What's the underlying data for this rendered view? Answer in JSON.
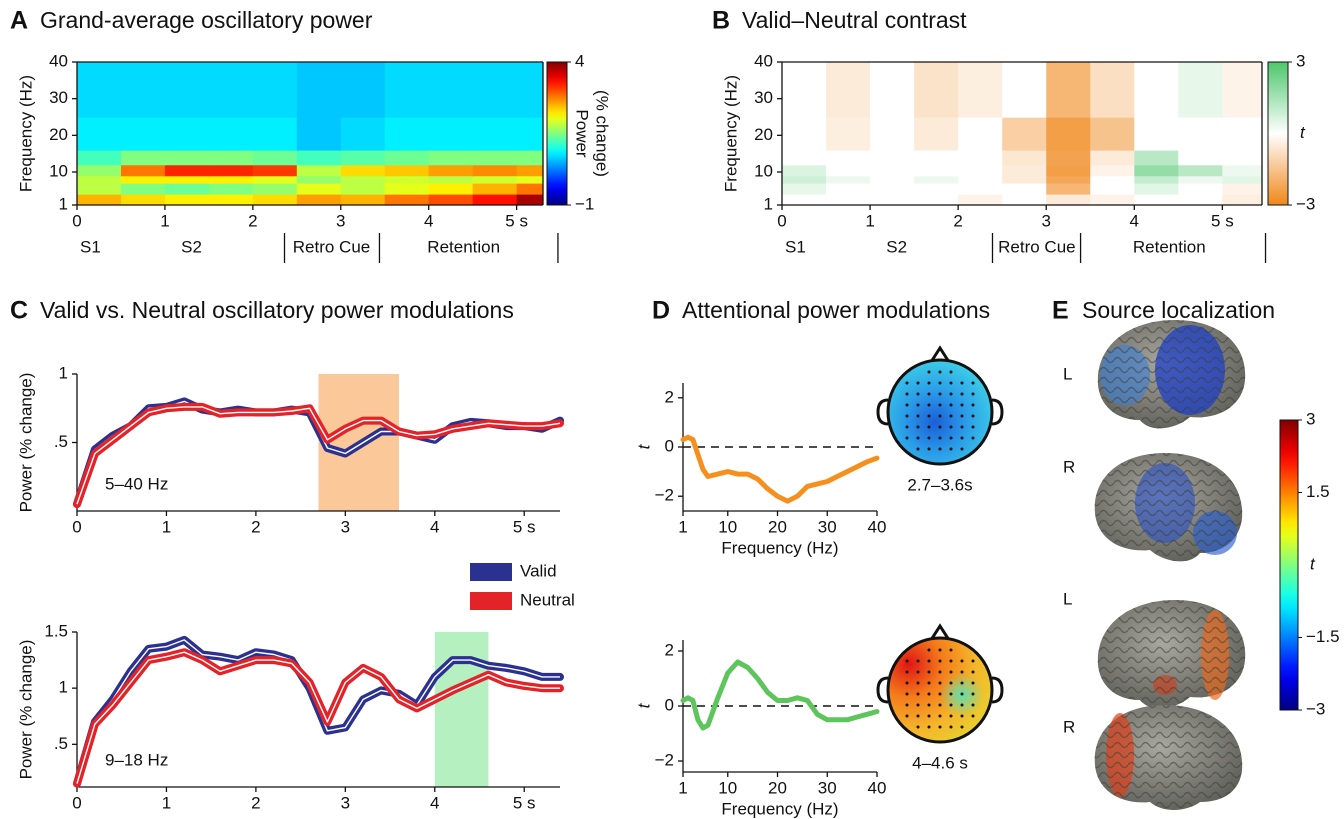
{
  "chart_data": [
    {
      "type": "heatmap",
      "panel": "A",
      "title": "Grand-average oscillatory power",
      "ylabel": "Frequency (Hz)",
      "xlim": [
        0,
        5.3
      ],
      "ylim": [
        1,
        40
      ],
      "xticks": [
        0,
        1,
        2,
        3,
        4,
        {
          "value": 5,
          "label": "5 s"
        }
      ],
      "yticks": [
        1,
        10,
        20,
        30,
        40
      ],
      "x_edges": [
        0,
        0.5,
        1,
        1.5,
        2,
        2.5,
        3,
        3.5,
        4,
        4.5,
        5,
        5.3
      ],
      "y_edges": [
        1,
        4,
        7,
        9,
        12,
        16,
        25,
        40
      ],
      "z": [
        [
          2.5,
          2.3,
          2.2,
          2.2,
          2.3,
          2.6,
          2.5,
          2.8,
          3.0,
          3.3,
          3.8
        ],
        [
          1.8,
          1.5,
          1.4,
          1.5,
          1.6,
          2.0,
          1.8,
          2.0,
          2.2,
          2.5,
          2.8
        ],
        [
          1.8,
          2.2,
          2.2,
          2.2,
          2.0,
          1.6,
          1.8,
          1.9,
          1.8,
          1.9,
          2.0
        ],
        [
          1.6,
          2.8,
          3.2,
          3.2,
          3.1,
          1.8,
          2.3,
          2.4,
          2.6,
          2.7,
          2.6
        ],
        [
          1.2,
          1.5,
          1.5,
          1.5,
          1.4,
          1.2,
          1.3,
          1.4,
          1.5,
          1.5,
          1.5
        ],
        [
          0.8,
          0.8,
          0.8,
          0.8,
          0.8,
          0.6,
          0.7,
          0.8,
          0.8,
          0.8,
          0.8
        ],
        [
          0.7,
          0.7,
          0.7,
          0.7,
          0.7,
          0.6,
          0.6,
          0.7,
          0.7,
          0.7,
          0.7
        ]
      ],
      "colormap": "jet",
      "clim": [
        -1,
        4
      ],
      "cticks": [
        4,
        {
          "value": -1,
          "label": "−1"
        }
      ],
      "clabel": [
        "Power",
        "(% change)"
      ],
      "events": [
        {
          "label": "S1",
          "time": 0
        },
        {
          "label": "S2",
          "time": 1.15
        },
        {
          "label": "Retro Cue",
          "time": 2.42
        },
        {
          "label": "Retention",
          "time": 3.95
        }
      ],
      "event_lines": [
        2.36,
        3.44,
        5.47
      ]
    },
    {
      "type": "heatmap",
      "panel": "B",
      "title": "Valid–Neutral contrast",
      "ylabel": "Frequency (Hz)",
      "xlim": [
        0,
        5.45
      ],
      "ylim": [
        1,
        40
      ],
      "xticks": [
        0,
        1,
        2,
        3,
        4,
        {
          "value": 5,
          "label": "5 s"
        }
      ],
      "yticks": [
        1,
        10,
        20,
        30,
        40
      ],
      "x_edges": [
        0,
        0.5,
        1,
        1.5,
        2,
        2.5,
        3,
        3.5,
        4,
        4.5,
        5,
        5.45
      ],
      "y_edges": [
        1,
        4,
        7,
        9,
        12,
        16,
        25,
        40
      ],
      "z": [
        [
          0,
          0,
          0,
          0,
          -0.3,
          0,
          -0.5,
          -0.3,
          0,
          0,
          -0.4
        ],
        [
          0.4,
          0,
          0,
          0,
          0,
          0,
          -1.8,
          0,
          0.5,
          0,
          -0.3
        ],
        [
          0.8,
          0.3,
          0,
          0.3,
          0,
          -0.5,
          -2.2,
          0,
          1.0,
          0.3,
          0.5
        ],
        [
          0.6,
          0,
          0,
          0,
          0,
          -0.5,
          -2.4,
          -0.3,
          1.8,
          1.2,
          0.3
        ],
        [
          0,
          0,
          0,
          0,
          0,
          -0.6,
          -2.3,
          -0.5,
          1.2,
          0,
          0
        ],
        [
          0,
          -0.4,
          0,
          -0.5,
          0,
          -1.2,
          -2.4,
          -1.5,
          0,
          0,
          0
        ],
        [
          0,
          -0.5,
          0,
          -0.7,
          -0.4,
          0,
          -1.8,
          -0.8,
          0,
          0.4,
          -0.3
        ]
      ],
      "colormap": "orange-white-green",
      "clim": [
        -3,
        3
      ],
      "cticks": [
        3,
        {
          "value": -3,
          "label": "−3"
        }
      ],
      "clabel": [
        "t"
      ],
      "events": [
        {
          "label": "S1",
          "time": 0
        },
        {
          "label": "S2",
          "time": 1.15
        },
        {
          "label": "Retro Cue",
          "time": 2.42
        },
        {
          "label": "Retention",
          "time": 3.95
        }
      ],
      "event_lines": [
        2.39,
        3.39,
        5.49
      ]
    },
    {
      "type": "line",
      "panel": "C",
      "title": "Valid vs. Neutral oscillatory power modulations",
      "ylabel": "Power (% change)",
      "annotation": "5–40 Hz",
      "x": [
        0,
        0.2,
        0.4,
        0.6,
        0.8,
        1.0,
        1.2,
        1.4,
        1.6,
        1.8,
        2.0,
        2.2,
        2.4,
        2.6,
        2.8,
        3.0,
        3.2,
        3.4,
        3.6,
        3.8,
        4.0,
        4.2,
        4.4,
        4.6,
        4.8,
        5.0,
        5.2,
        5.4
      ],
      "xlim": [
        0,
        5.4
      ],
      "ylim": [
        0,
        1
      ],
      "xticks": [
        0,
        1,
        2,
        3,
        4,
        {
          "value": 5,
          "label": "5 s"
        }
      ],
      "yticks": [
        {
          "value": 0.5,
          "label": ".5"
        },
        1
      ],
      "highlight": {
        "range": [
          2.7,
          3.6
        ],
        "color": "#fbc89a"
      },
      "series": [
        {
          "color": "#2b3190",
          "values": [
            0.05,
            0.45,
            0.55,
            0.62,
            0.75,
            0.76,
            0.8,
            0.74,
            0.72,
            0.74,
            0.72,
            0.72,
            0.74,
            0.72,
            0.46,
            0.42,
            0.5,
            0.58,
            0.58,
            0.55,
            0.52,
            0.62,
            0.65,
            0.64,
            0.62,
            0.62,
            0.6,
            0.66
          ]
        },
        {
          "color": "#e42329",
          "values": [
            0.05,
            0.42,
            0.52,
            0.62,
            0.72,
            0.75,
            0.76,
            0.76,
            0.71,
            0.72,
            0.72,
            0.72,
            0.73,
            0.75,
            0.52,
            0.6,
            0.66,
            0.66,
            0.58,
            0.55,
            0.56,
            0.6,
            0.62,
            0.64,
            0.63,
            0.62,
            0.62,
            0.64
          ]
        }
      ]
    },
    {
      "type": "line",
      "ylabel": "Power (% change)",
      "annotation": "9–18 Hz",
      "x": [
        0,
        0.2,
        0.4,
        0.6,
        0.8,
        1.0,
        1.2,
        1.4,
        1.6,
        1.8,
        2.0,
        2.2,
        2.4,
        2.6,
        2.8,
        3.0,
        3.2,
        3.4,
        3.6,
        3.8,
        4.0,
        4.2,
        4.4,
        4.6,
        4.8,
        5.0,
        5.2,
        5.4
      ],
      "xlim": [
        0,
        5.4
      ],
      "ylim": [
        0.12,
        1.5
      ],
      "xticks": [
        0,
        1,
        2,
        3,
        4,
        {
          "value": 5,
          "label": "5 s"
        }
      ],
      "yticks": [
        {
          "value": 0.5,
          "label": ".5"
        },
        1,
        1.5
      ],
      "highlight": {
        "range": [
          4.0,
          4.6
        ],
        "color": "#b5f0c0"
      },
      "series": [
        {
          "name": "Valid",
          "color": "#2b3190",
          "values": [
            0.15,
            0.7,
            0.9,
            1.15,
            1.35,
            1.37,
            1.43,
            1.3,
            1.28,
            1.25,
            1.32,
            1.3,
            1.25,
            1.0,
            0.62,
            0.65,
            0.9,
            0.98,
            0.95,
            0.85,
            1.1,
            1.25,
            1.25,
            1.2,
            1.18,
            1.15,
            1.1,
            1.1
          ]
        },
        {
          "name": "Neutral",
          "color": "#e42329",
          "values": [
            0.15,
            0.68,
            0.85,
            1.05,
            1.25,
            1.28,
            1.32,
            1.25,
            1.15,
            1.2,
            1.25,
            1.25,
            1.22,
            1.05,
            0.7,
            1.05,
            1.18,
            1.1,
            0.9,
            0.82,
            0.9,
            0.98,
            1.05,
            1.12,
            1.05,
            1.02,
            1.0,
            1.0
          ]
        }
      ]
    },
    {
      "type": "line",
      "panel": "D",
      "title": "Attentional power modulations",
      "xlabel": "Frequency (Hz)",
      "ylabel": "t",
      "caption": "2.7–3.6s",
      "zero_line": true,
      "x": [
        1,
        2,
        3,
        4,
        5,
        6,
        8,
        10,
        12,
        14,
        16,
        18,
        20,
        22,
        24,
        26,
        28,
        30,
        32,
        34,
        36,
        38,
        40
      ],
      "xlim": [
        1,
        40
      ],
      "ylim": [
        -2.6,
        2.6
      ],
      "xticks": [
        1,
        10,
        20,
        30,
        40
      ],
      "yticks": [
        2,
        0,
        {
          "value": -2,
          "label": "−2"
        }
      ],
      "series": [
        {
          "color": "#f5901e",
          "values": [
            0.3,
            0.4,
            0.3,
            -0.3,
            -0.9,
            -1.2,
            -1.1,
            -1.0,
            -1.1,
            -1.1,
            -1.3,
            -1.7,
            -2.0,
            -2.2,
            -2.0,
            -1.6,
            -1.5,
            -1.4,
            -1.2,
            -1.0,
            -0.8,
            -0.6,
            -0.45
          ]
        }
      ]
    },
    {
      "type": "line",
      "xlabel": "Frequency (Hz)",
      "ylabel": "t",
      "caption": "4–4.6 s",
      "zero_line": true,
      "x": [
        1,
        2,
        3,
        4,
        5,
        6,
        8,
        10,
        12,
        14,
        16,
        18,
        20,
        22,
        24,
        26,
        28,
        30,
        32,
        34,
        36,
        38,
        40
      ],
      "xlim": [
        1,
        40
      ],
      "ylim": [
        -2.4,
        2.4
      ],
      "xticks": [
        1,
        10,
        20,
        30,
        40
      ],
      "yticks": [
        2,
        0,
        {
          "value": -2,
          "label": "−2"
        }
      ],
      "series": [
        {
          "color": "#5dc55b",
          "values": [
            0.2,
            0.3,
            0.2,
            -0.5,
            -0.8,
            -0.7,
            0.3,
            1.2,
            1.6,
            1.4,
            1.0,
            0.5,
            0.2,
            0.2,
            0.3,
            0.2,
            -0.3,
            -0.5,
            -0.5,
            -0.5,
            -0.4,
            -0.3,
            -0.2
          ]
        }
      ]
    },
    {
      "type": "image",
      "panel": "E",
      "title": "Source localization",
      "labels": [
        "L",
        "R",
        "L",
        "R"
      ],
      "colormap": "jet",
      "clim": [
        -3,
        3
      ],
      "cticks": [
        3,
        1.5,
        {
          "value": -1.5,
          "label": "−1.5"
        },
        {
          "value": -3,
          "label": "−3"
        }
      ],
      "clabel": [
        "t"
      ]
    }
  ]
}
